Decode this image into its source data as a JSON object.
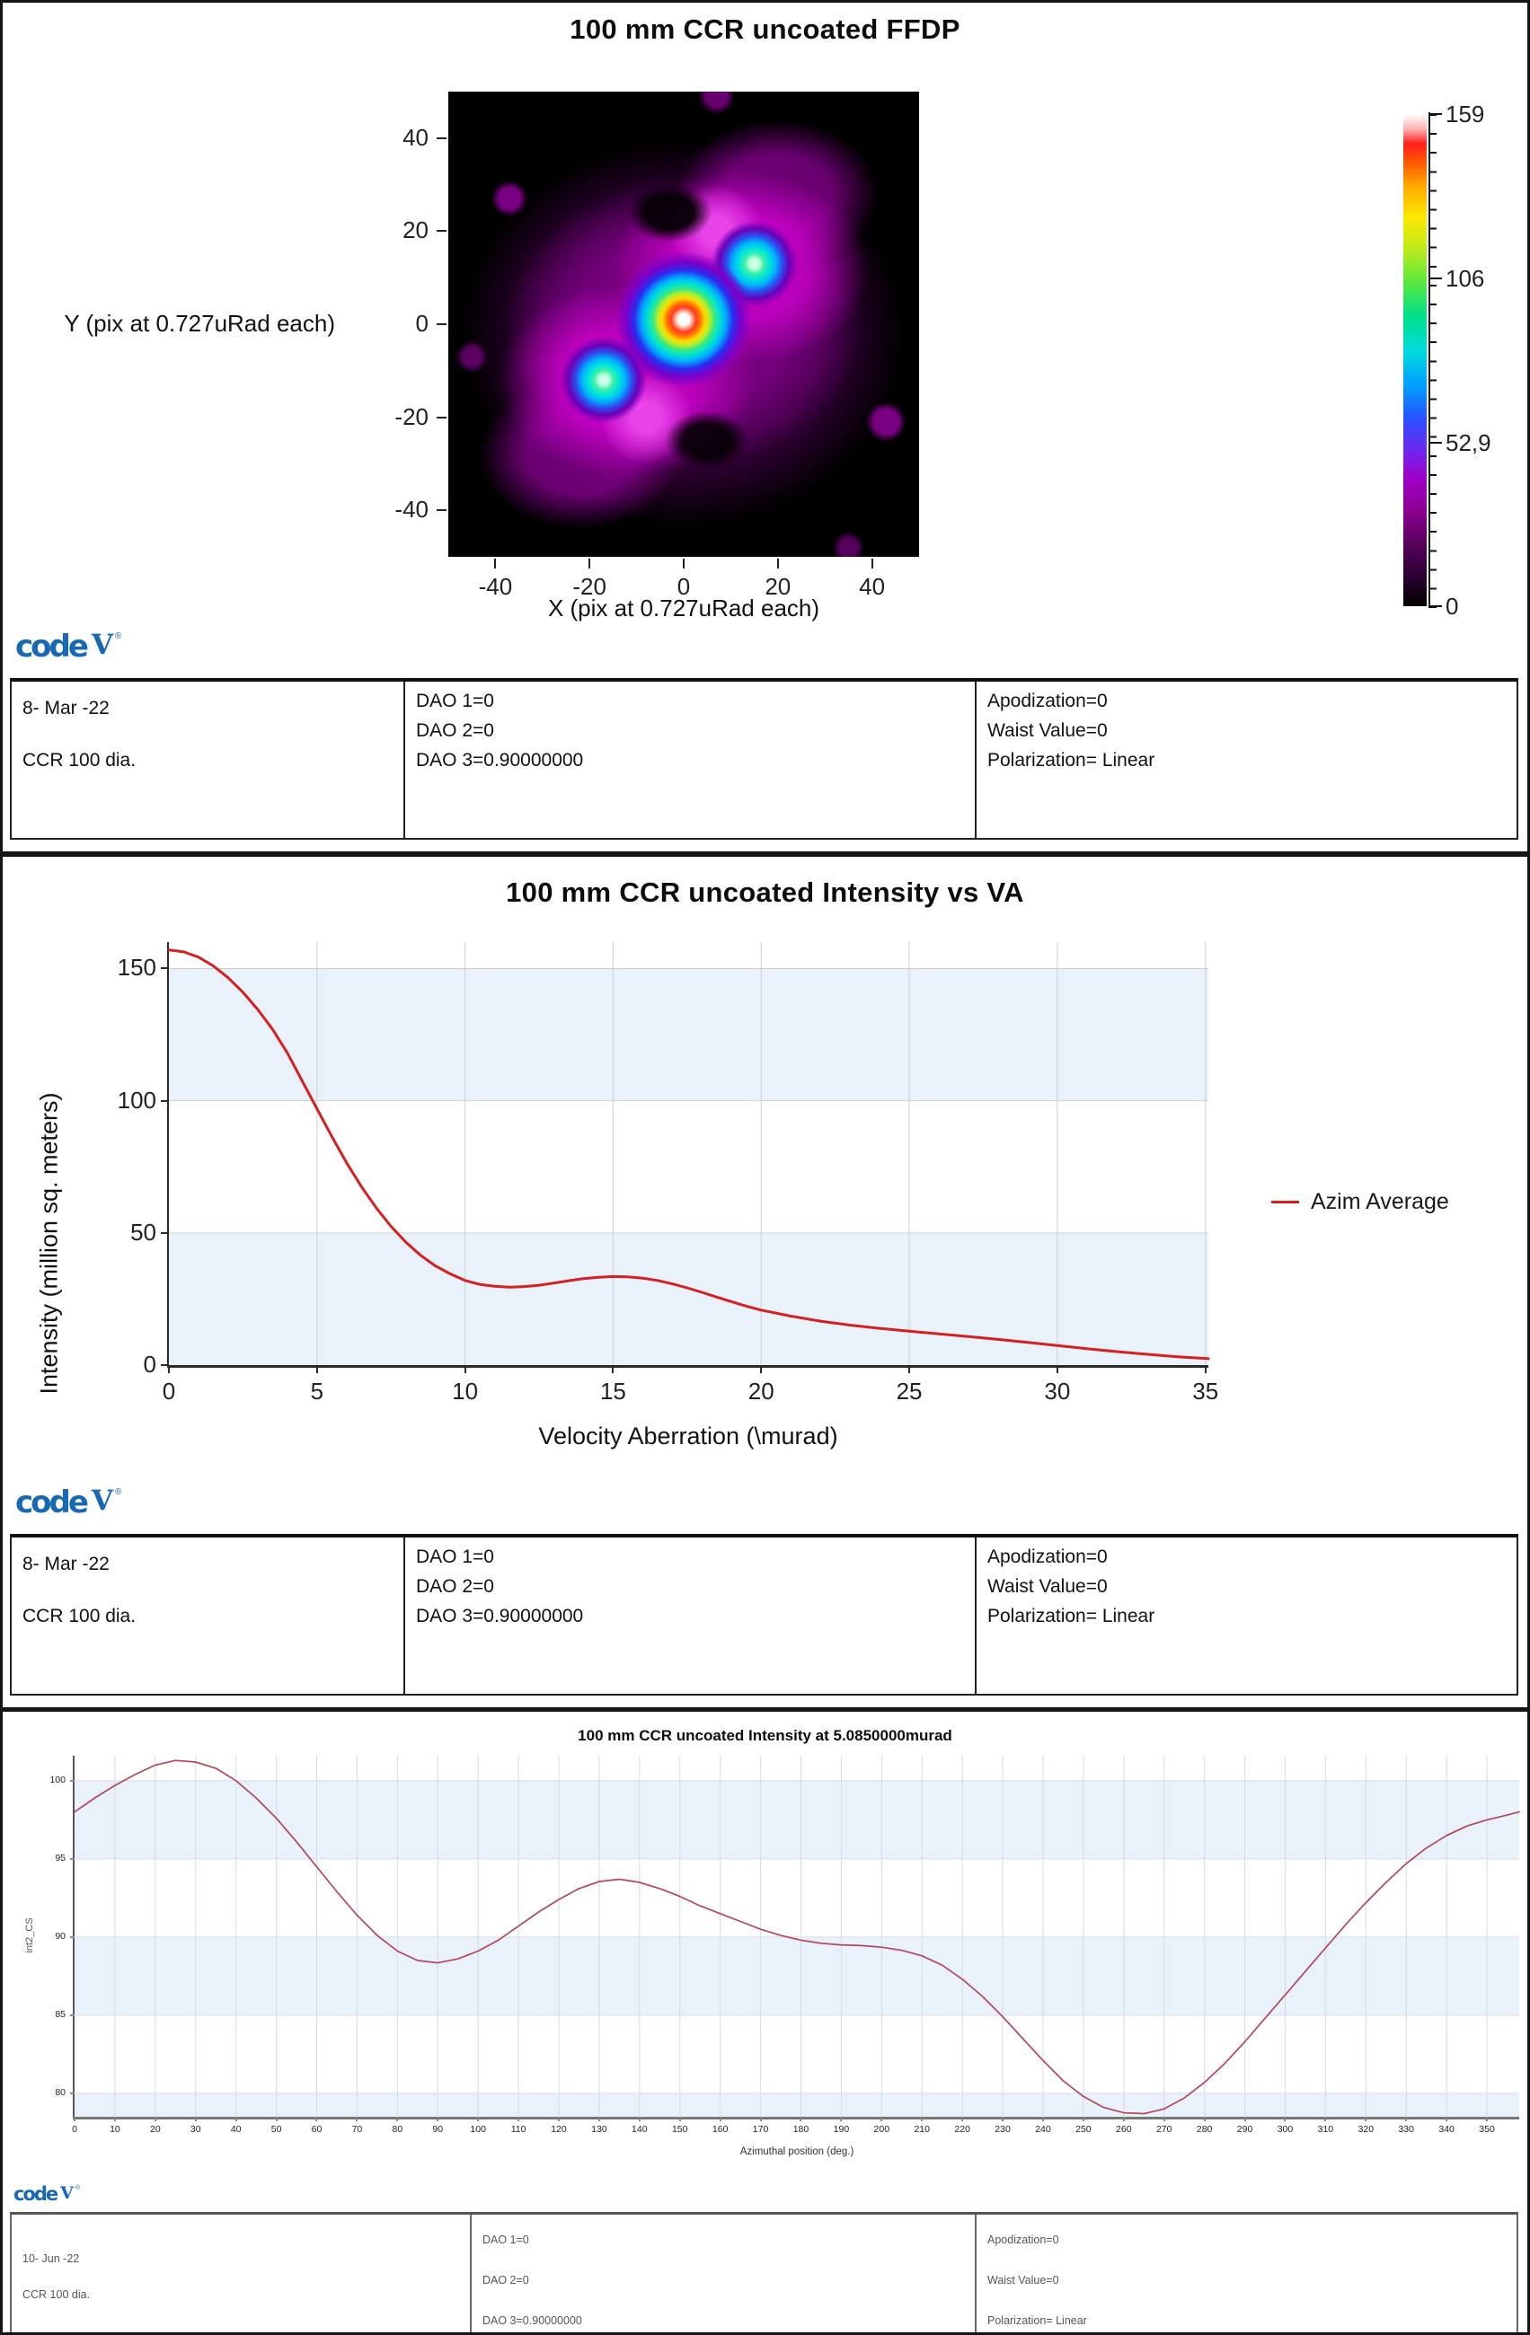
{
  "logo": {
    "code": "code",
    "v": "V",
    "reg": "®"
  },
  "footers": [
    {
      "date": "8- Mar -22",
      "desc": "CCR 100 dia.",
      "col2": [
        "DAO 1=0",
        "DAO 2=0",
        "DAO 3=0.90000000"
      ],
      "col3": [
        "Apodization=0",
        "Waist Value=0",
        "Polarization= Linear"
      ]
    },
    {
      "date": "8- Mar -22",
      "desc": "CCR 100 dia.",
      "col2": [
        "DAO 1=0",
        "DAO 2=0",
        "DAO 3=0.90000000"
      ],
      "col3": [
        "Apodization=0",
        "Waist Value=0",
        "Polarization= Linear"
      ]
    },
    {
      "date": "10- Jun -22",
      "desc": "CCR 100 dia.",
      "col2": [
        "DAO 1=0",
        "DAO 2=0",
        "DAO 3=0.90000000"
      ],
      "col3": [
        "Apodization=0",
        "Waist Value=0",
        "Polarization= Linear"
      ]
    }
  ],
  "chart_data": [
    {
      "type": "heatmap",
      "title": "100 mm CCR uncoated FFDP",
      "xlabel": "X (pix at 0.727uRad each)",
      "ylabel": "Y (pix at 0.727uRad each)",
      "xlim": [
        -50,
        50
      ],
      "ylim": [
        -50,
        50
      ],
      "xticks": [
        -40,
        -20,
        0,
        20,
        40
      ],
      "yticks": [
        40,
        20,
        0,
        -20,
        -40
      ],
      "colorbar": {
        "min": 0,
        "max": 159,
        "tick_values": [
          159,
          106,
          52.9,
          0
        ],
        "tick_labels": [
          "159",
          "106",
          "52,9",
          "0"
        ]
      },
      "features": [
        {
          "name": "central-peak",
          "x": 0,
          "y": 0,
          "value": 159,
          "desc": "white core with red/orange/yellow/green/blue rings"
        },
        {
          "name": "upper-right-lobe",
          "x": 15,
          "y": 13,
          "value": 90,
          "desc": "cyan-green secondary lobe"
        },
        {
          "name": "lower-left-lobe",
          "x": -17,
          "y": -12,
          "value": 90,
          "desc": "cyan-green secondary lobe"
        },
        {
          "name": "halo",
          "desc": "magenta/purple diffraction halo elongated along lower-left to upper-right diagonal on black background"
        }
      ]
    },
    {
      "type": "line",
      "title": "100 mm CCR uncoated Intensity vs VA",
      "xlabel": "Velocity Aberration (\\murad)",
      "ylabel": "Intensity (million sq. meters)",
      "xlim": [
        0,
        35.1
      ],
      "ylim": [
        0,
        160
      ],
      "xticks": [
        0,
        5,
        10,
        15,
        20,
        25,
        30,
        35
      ],
      "yticks": [
        0,
        50,
        100,
        150
      ],
      "bands": [
        [
          0,
          50
        ],
        [
          100,
          150
        ]
      ],
      "band_color": "#e9f1fa",
      "grid_color": "#cfcfcf",
      "axis_color": "#2a2a2a",
      "legend": [
        {
          "name": "Azim Average",
          "color": "#d42020"
        }
      ],
      "legend_position": "right",
      "series": [
        {
          "name": "Azim Average",
          "color": "#d42020",
          "x": [
            0,
            0.5,
            1,
            1.5,
            2,
            2.5,
            3,
            3.5,
            4,
            4.5,
            5,
            5.5,
            6,
            6.5,
            7,
            7.5,
            8,
            8.5,
            9,
            9.5,
            10,
            10.5,
            11,
            11.5,
            12,
            12.5,
            13,
            13.5,
            14,
            14.5,
            15,
            15.5,
            16,
            16.5,
            17,
            17.5,
            18,
            18.5,
            19,
            19.5,
            20,
            21,
            22,
            23,
            24,
            25,
            26,
            27,
            28,
            29,
            30,
            31,
            32,
            33,
            34,
            35,
            35.1
          ],
          "y": [
            157,
            156.3,
            154.3,
            151,
            146.5,
            141,
            134.5,
            127,
            118,
            107.5,
            97,
            86.5,
            76.5,
            67.5,
            59.5,
            52.5,
            46.5,
            41.5,
            37.5,
            34.5,
            32,
            30.5,
            29.8,
            29.5,
            29.7,
            30.2,
            31,
            31.9,
            32.7,
            33.2,
            33.5,
            33.4,
            32.9,
            32,
            30.7,
            29.2,
            27.5,
            25.7,
            24,
            22.3,
            20.8,
            18.5,
            16.6,
            15.1,
            13.9,
            12.8,
            11.8,
            10.8,
            9.7,
            8.6,
            7.4,
            6.2,
            5.1,
            4.1,
            3.2,
            2.5,
            2.4
          ]
        }
      ]
    },
    {
      "type": "line",
      "title": "100 mm CCR uncoated Intensity at 5.0850000murad",
      "xlabel": "Azimuthal position (deg.)",
      "ylabel": "int2_CS",
      "xlim": [
        0,
        358
      ],
      "ylim": [
        78.5,
        101.6
      ],
      "xticks": [
        0,
        10,
        20,
        30,
        40,
        50,
        60,
        70,
        80,
        90,
        100,
        110,
        120,
        130,
        140,
        150,
        160,
        170,
        180,
        190,
        200,
        210,
        220,
        230,
        240,
        250,
        260,
        270,
        280,
        290,
        300,
        310,
        320,
        330,
        340,
        350
      ],
      "yticks": [
        80,
        85,
        90,
        95,
        100
      ],
      "bands": [
        [
          78.5,
          80
        ],
        [
          85,
          90
        ],
        [
          95,
          100
        ]
      ],
      "band_color": "#e9f1fa",
      "grid_color": "#d5dce5",
      "axis_color": "#777777",
      "series": [
        {
          "name": "int2_CS",
          "color": "#b2485a",
          "x": [
            0,
            5,
            10,
            15,
            20,
            25,
            30,
            35,
            40,
            45,
            50,
            55,
            60,
            65,
            70,
            75,
            80,
            85,
            90,
            95,
            100,
            105,
            110,
            115,
            120,
            125,
            130,
            135,
            140,
            145,
            150,
            155,
            160,
            165,
            170,
            175,
            180,
            185,
            190,
            195,
            200,
            205,
            210,
            215,
            220,
            225,
            230,
            235,
            240,
            245,
            250,
            255,
            260,
            265,
            270,
            275,
            280,
            285,
            290,
            295,
            300,
            305,
            310,
            315,
            320,
            325,
            330,
            335,
            340,
            345,
            350,
            355,
            358
          ],
          "y": [
            98.0,
            98.9,
            99.7,
            100.4,
            101.0,
            101.3,
            101.2,
            100.8,
            100.0,
            98.9,
            97.6,
            96.1,
            94.5,
            92.9,
            91.4,
            90.1,
            89.1,
            88.5,
            88.35,
            88.6,
            89.1,
            89.8,
            90.7,
            91.6,
            92.4,
            93.1,
            93.55,
            93.7,
            93.5,
            93.1,
            92.6,
            92.0,
            91.5,
            91.0,
            90.5,
            90.1,
            89.8,
            89.6,
            89.5,
            89.45,
            89.35,
            89.15,
            88.8,
            88.2,
            87.3,
            86.2,
            84.9,
            83.5,
            82.1,
            80.8,
            79.8,
            79.1,
            78.75,
            78.7,
            79.0,
            79.7,
            80.7,
            81.9,
            83.3,
            84.8,
            86.3,
            87.8,
            89.3,
            90.8,
            92.2,
            93.5,
            94.7,
            95.7,
            96.5,
            97.1,
            97.5,
            97.8,
            98.0
          ]
        }
      ]
    }
  ]
}
